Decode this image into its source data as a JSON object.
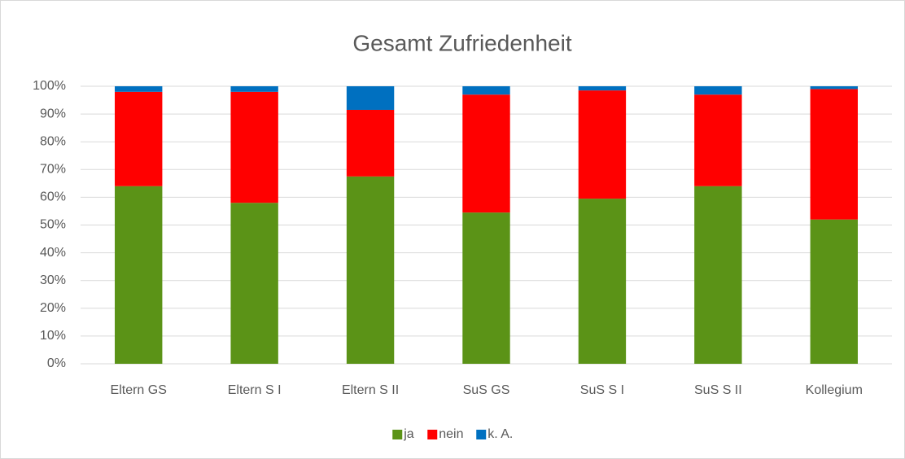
{
  "chart_data": {
    "type": "stacked_bar",
    "title": "Gesamt Zufriedenheit",
    "categories": [
      "Eltern GS",
      "Eltern S I",
      "Eltern S II",
      "SuS GS",
      "SuS S I",
      "SuS S II",
      "Kollegium"
    ],
    "series": [
      {
        "name": "ja",
        "color": "#5b9317",
        "values": [
          64,
          58,
          67.5,
          54.5,
          59.5,
          64,
          52
        ]
      },
      {
        "name": "nein",
        "color": "#ff0000",
        "values": [
          34,
          40,
          24,
          42.5,
          39,
          33,
          47
        ]
      },
      {
        "name": "k. A.",
        "color": "#0070c0",
        "values": [
          2,
          2,
          8.5,
          3,
          1.5,
          3,
          1
        ]
      }
    ],
    "ylim": [
      0,
      100
    ],
    "yticks": [
      {
        "value": 0,
        "label": "0%"
      },
      {
        "value": 10,
        "label": "10%"
      },
      {
        "value": 20,
        "label": "20%"
      },
      {
        "value": 30,
        "label": "30%"
      },
      {
        "value": 40,
        "label": "40%"
      },
      {
        "value": 50,
        "label": "50%"
      },
      {
        "value": 60,
        "label": "60%"
      },
      {
        "value": 70,
        "label": "70%"
      },
      {
        "value": 80,
        "label": "80%"
      },
      {
        "value": 90,
        "label": "90%"
      },
      {
        "value": 100,
        "label": "100%"
      }
    ],
    "grid": true,
    "legend": "bottom"
  }
}
